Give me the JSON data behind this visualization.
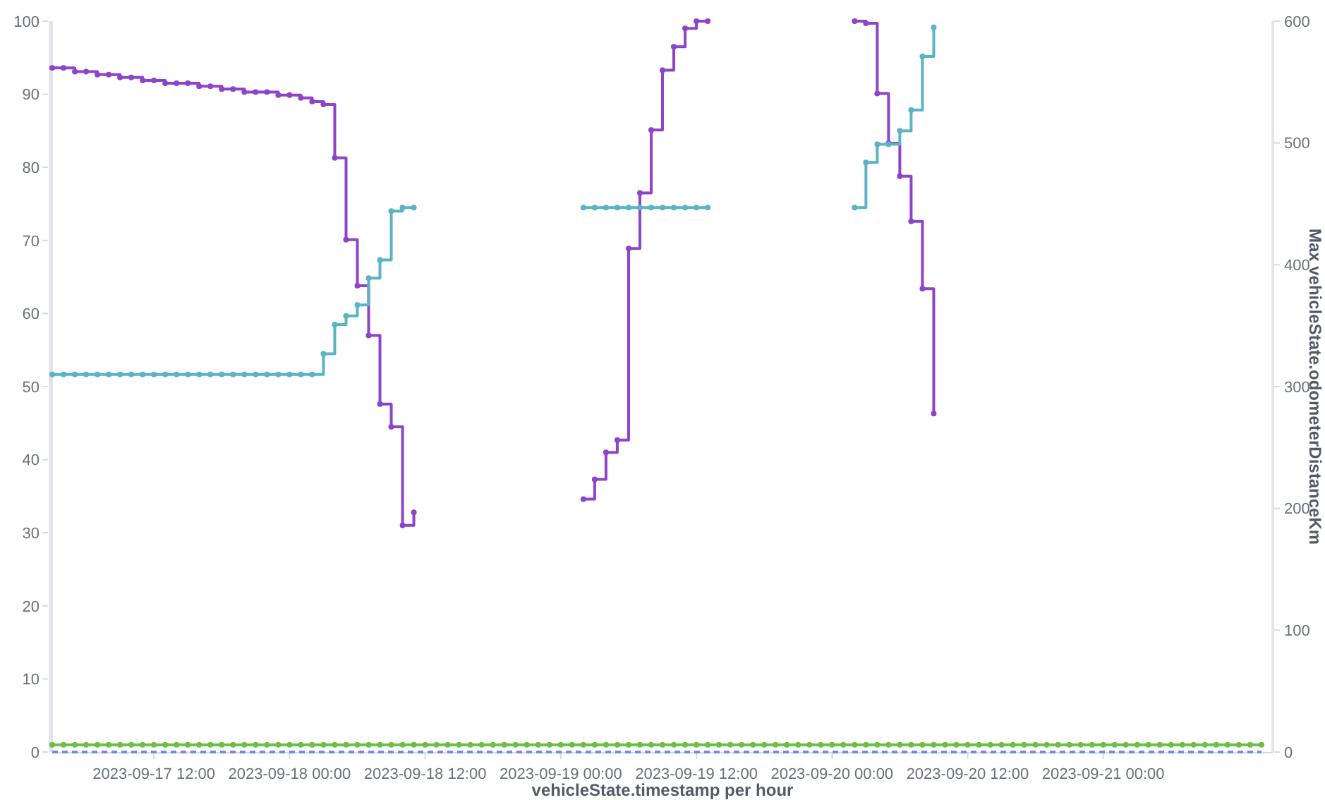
{
  "chart_data": {
    "type": "step",
    "xlabel": "vehicleState.timestamp per hour",
    "y2label": "Max vehicleState.odometerDistanceKm",
    "x": [
      "2023-09-17T03:00",
      "2023-09-17T04:00",
      "2023-09-17T05:00",
      "2023-09-17T06:00",
      "2023-09-17T07:00",
      "2023-09-17T08:00",
      "2023-09-17T09:00",
      "2023-09-17T10:00",
      "2023-09-17T11:00",
      "2023-09-17T12:00",
      "2023-09-17T13:00",
      "2023-09-17T14:00",
      "2023-09-17T15:00",
      "2023-09-17T16:00",
      "2023-09-17T17:00",
      "2023-09-17T18:00",
      "2023-09-17T19:00",
      "2023-09-17T20:00",
      "2023-09-17T21:00",
      "2023-09-17T22:00",
      "2023-09-17T23:00",
      "2023-09-18T00:00",
      "2023-09-18T01:00",
      "2023-09-18T02:00",
      "2023-09-18T03:00",
      "2023-09-18T04:00",
      "2023-09-18T05:00",
      "2023-09-18T06:00",
      "2023-09-18T07:00",
      "2023-09-18T08:00",
      "2023-09-18T09:00",
      "2023-09-18T10:00",
      "2023-09-18T11:00",
      "2023-09-18T12:00",
      "2023-09-19T02:00",
      "2023-09-19T03:00",
      "2023-09-19T04:00",
      "2023-09-19T05:00",
      "2023-09-19T06:00",
      "2023-09-19T07:00",
      "2023-09-19T08:00",
      "2023-09-19T09:00",
      "2023-09-19T10:00",
      "2023-09-19T11:00",
      "2023-09-19T12:00",
      "2023-09-19T13:00",
      "2023-09-19T14:00",
      "2023-09-20T02:00",
      "2023-09-20T03:00",
      "2023-09-20T04:00",
      "2023-09-20T05:00",
      "2023-09-20T06:00",
      "2023-09-20T07:00",
      "2023-09-20T08:00",
      "2023-09-20T09:00"
    ],
    "series": [
      {
        "color": "#8e44c9",
        "values": [
          93.6,
          93.6,
          93.1,
          93.1,
          92.7,
          92.7,
          92.3,
          92.3,
          91.9,
          91.9,
          91.5,
          91.5,
          91.5,
          91.1,
          91.1,
          90.7,
          90.7,
          90.3,
          90.3,
          90.3,
          89.9,
          89.9,
          89.5,
          89.0,
          88.6,
          81.3,
          70.1,
          63.8,
          57.0,
          47.6,
          44.5,
          31.0,
          32.8,
          null,
          34.6,
          37.3,
          41.0,
          42.7,
          68.9,
          76.5,
          85.1,
          93.3,
          96.5,
          99.0,
          100,
          100,
          null,
          100,
          99.7,
          90.1,
          83.3,
          78.8,
          72.6,
          63.4,
          46.3
        ]
      },
      {
        "color": "#5bb3c4",
        "axis": "y2",
        "values": [
          310,
          310,
          310,
          310,
          310,
          310,
          310,
          310,
          310,
          310,
          310,
          310,
          310,
          310,
          310,
          310,
          310,
          310,
          310,
          310,
          310,
          310,
          310,
          310,
          327,
          351,
          358,
          367,
          389,
          404,
          444,
          447,
          447,
          null,
          447,
          447,
          447,
          447,
          447,
          447,
          447,
          447,
          447,
          447,
          447,
          447,
          null,
          447,
          484,
          499,
          499,
          510,
          527,
          571,
          595
        ]
      },
      {
        "color": "#6dbe45",
        "x": [
          "2023-09-17T03:00",
          "2023-09-17T04:00",
          "2023-09-17T05:00",
          "2023-09-17T06:00",
          "2023-09-17T07:00",
          "2023-09-17T08:00",
          "2023-09-17T09:00",
          "2023-09-17T10:00",
          "2023-09-17T11:00",
          "2023-09-17T12:00",
          "2023-09-17T13:00",
          "2023-09-17T14:00",
          "2023-09-17T15:00",
          "2023-09-17T16:00",
          "2023-09-17T17:00",
          "2023-09-17T18:00",
          "2023-09-17T19:00",
          "2023-09-17T20:00",
          "2023-09-17T21:00",
          "2023-09-17T22:00",
          "2023-09-17T23:00",
          "2023-09-18T00:00",
          "2023-09-18T01:00",
          "2023-09-18T02:00",
          "2023-09-18T03:00",
          "2023-09-18T04:00",
          "2023-09-18T05:00",
          "2023-09-18T06:00",
          "2023-09-18T07:00",
          "2023-09-18T08:00",
          "2023-09-18T09:00",
          "2023-09-18T10:00",
          "2023-09-18T11:00",
          "2023-09-18T12:00",
          "2023-09-18T13:00",
          "2023-09-18T14:00",
          "2023-09-18T15:00",
          "2023-09-18T16:00",
          "2023-09-18T17:00",
          "2023-09-18T18:00",
          "2023-09-18T19:00",
          "2023-09-18T20:00",
          "2023-09-18T21:00",
          "2023-09-18T22:00",
          "2023-09-18T23:00",
          "2023-09-19T00:00",
          "2023-09-19T01:00",
          "2023-09-19T02:00",
          "2023-09-19T03:00",
          "2023-09-19T04:00",
          "2023-09-19T05:00",
          "2023-09-19T06:00",
          "2023-09-19T07:00",
          "2023-09-19T08:00",
          "2023-09-19T09:00",
          "2023-09-19T10:00",
          "2023-09-19T11:00",
          "2023-09-19T12:00",
          "2023-09-19T13:00",
          "2023-09-19T14:00",
          "2023-09-19T15:00",
          "2023-09-19T16:00",
          "2023-09-19T17:00",
          "2023-09-19T18:00",
          "2023-09-19T19:00",
          "2023-09-19T20:00",
          "2023-09-19T21:00",
          "2023-09-19T22:00",
          "2023-09-19T23:00",
          "2023-09-20T00:00",
          "2023-09-20T01:00",
          "2023-09-20T02:00",
          "2023-09-20T03:00",
          "2023-09-20T04:00",
          "2023-09-20T05:00",
          "2023-09-20T06:00",
          "2023-09-20T07:00",
          "2023-09-20T08:00",
          "2023-09-20T09:00",
          "2023-09-20T10:00",
          "2023-09-20T11:00",
          "2023-09-20T12:00",
          "2023-09-20T13:00",
          "2023-09-20T14:00",
          "2023-09-20T15:00",
          "2023-09-20T16:00",
          "2023-09-20T17:00",
          "2023-09-20T18:00",
          "2023-09-20T19:00",
          "2023-09-20T20:00",
          "2023-09-20T21:00",
          "2023-09-20T22:00",
          "2023-09-20T23:00",
          "2023-09-21T00:00",
          "2023-09-21T01:00",
          "2023-09-21T02:00",
          "2023-09-21T03:00",
          "2023-09-21T04:00",
          "2023-09-21T05:00",
          "2023-09-21T06:00",
          "2023-09-21T07:00",
          "2023-09-21T08:00",
          "2023-09-21T09:00",
          "2023-09-21T10:00",
          "2023-09-21T11:00",
          "2023-09-21T12:00",
          "2023-09-21T13:00",
          "2023-09-21T14:00"
        ],
        "values": [
          1,
          1,
          1,
          1,
          1,
          1,
          1,
          1,
          1,
          1,
          1,
          1,
          1,
          1,
          1,
          1,
          1,
          1,
          1,
          1,
          1,
          1,
          1,
          1,
          1,
          1,
          1,
          1,
          1,
          1,
          1,
          1,
          1,
          1,
          1,
          1,
          1,
          1,
          1,
          1,
          1,
          1,
          1,
          1,
          1,
          1,
          1,
          1,
          1,
          1,
          1,
          1,
          1,
          1,
          1,
          1,
          1,
          1,
          1,
          1,
          1,
          1,
          1,
          1,
          1,
          1,
          1,
          1,
          1,
          1,
          1,
          1,
          1,
          1,
          1,
          1,
          1,
          1,
          1,
          1,
          1,
          1,
          1,
          1,
          1,
          1,
          1,
          1,
          1,
          1,
          1,
          1,
          1,
          1,
          1,
          1,
          1,
          1,
          1,
          1,
          1,
          1,
          1,
          1,
          1,
          1,
          1,
          1
        ]
      },
      {
        "color": "#6d8fe0",
        "x": [
          "2023-09-17T03:00",
          "2023-09-21T14:00"
        ],
        "values": [
          0,
          0
        ],
        "marker": "none",
        "line_style": "dashed"
      }
    ],
    "xlim": [
      "2023-09-17T03:00",
      "2023-09-21T15:00"
    ],
    "xticks": [
      {
        "value": "2023-09-17T12:00",
        "label": "2023-09-17 12:00"
      },
      {
        "value": "2023-09-18T00:00",
        "label": "2023-09-18 00:00"
      },
      {
        "value": "2023-09-18T12:00",
        "label": "2023-09-18 12:00"
      },
      {
        "value": "2023-09-19T00:00",
        "label": "2023-09-19 00:00"
      },
      {
        "value": "2023-09-19T12:00",
        "label": "2023-09-19 12:00"
      },
      {
        "value": "2023-09-20T00:00",
        "label": "2023-09-20 00:00"
      },
      {
        "value": "2023-09-20T12:00",
        "label": "2023-09-20 12:00"
      },
      {
        "value": "2023-09-21T00:00",
        "label": "2023-09-21 00:00"
      }
    ],
    "ylim": [
      0,
      100
    ],
    "yticks": [
      0,
      10,
      20,
      30,
      40,
      50,
      60,
      70,
      80,
      90,
      100
    ],
    "y2lim": [
      0,
      600
    ],
    "y2ticks": [
      0,
      100,
      200,
      300,
      400,
      500,
      600
    ],
    "grid": false,
    "marker": "circle",
    "line_style": "solid"
  }
}
